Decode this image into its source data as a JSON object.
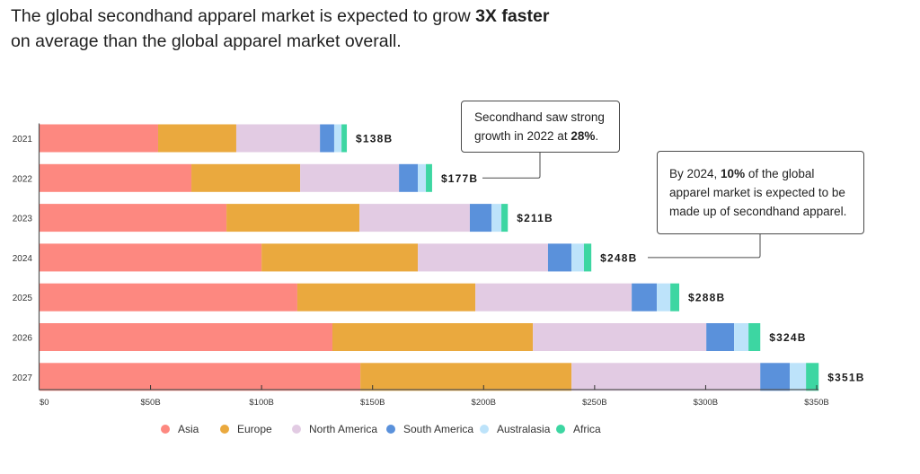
{
  "headline": {
    "line1_prefix": "The global secondhand apparel market is expected to grow ",
    "line1_bold": "3X faster",
    "line2": "on average than the global apparel market overall."
  },
  "annotations": [
    {
      "id": "annot1",
      "year": "2022",
      "text_prefix": "Secondhand saw strong growth in 2022 at ",
      "text_bold": "28%",
      "text_suffix": "."
    },
    {
      "id": "annot2",
      "year": "2024",
      "text_prefix": "By 2024, ",
      "text_bold": "10%",
      "text_suffix": " of the global apparel market is expected to be made up of secondhand apparel."
    }
  ],
  "chart_data": {
    "type": "bar",
    "orientation": "horizontal",
    "stacked": true,
    "title": "The global secondhand apparel market is expected to grow 3X faster on average than the global apparel market overall.",
    "xlabel": "",
    "ylabel": "",
    "xlim": [
      0,
      350
    ],
    "x_unit": "$B",
    "x_ticks": [
      0,
      50,
      100,
      150,
      200,
      250,
      300,
      350
    ],
    "x_tick_labels": [
      "$0",
      "$50B",
      "$100B",
      "$150B",
      "$200B",
      "$250B",
      "$300B",
      "$350B"
    ],
    "categories": [
      "2021",
      "2022",
      "2023",
      "2024",
      "2025",
      "2026",
      "2027"
    ],
    "series": [
      {
        "name": "Asia",
        "color": "#fd8880",
        "values": [
          53.4,
          68.4,
          84.2,
          100.0,
          116.1,
          131.9,
          144.5
        ]
      },
      {
        "name": "Europe",
        "color": "#eaa93e",
        "values": [
          35.2,
          49.0,
          59.9,
          70.4,
          80.2,
          90.3,
          95.1
        ]
      },
      {
        "name": "North America",
        "color": "#e2cbe3",
        "values": [
          37.7,
          44.5,
          49.7,
          58.6,
          70.4,
          78.1,
          85.0
        ]
      },
      {
        "name": "South America",
        "color": "#5a91db",
        "values": [
          6.4,
          8.5,
          9.8,
          10.6,
          11.3,
          12.5,
          13.3
        ]
      },
      {
        "name": "Australasia",
        "color": "#bde3fa",
        "values": [
          3.3,
          3.6,
          4.4,
          5.6,
          6.1,
          6.5,
          7.3
        ]
      },
      {
        "name": "Africa",
        "color": "#3dd6a2",
        "values": [
          2.4,
          2.8,
          2.9,
          3.3,
          4.0,
          5.3,
          5.7
        ]
      }
    ],
    "totals": [
      138,
      177,
      211,
      248,
      288,
      324,
      351
    ],
    "total_labels": [
      "$138B",
      "$177B",
      "$211B",
      "$248B",
      "$288B",
      "$324B",
      "$351B"
    ],
    "legend": {
      "position": "bottom",
      "entries": [
        "Asia",
        "Europe",
        "North America",
        "South America",
        "Australasia",
        "Africa"
      ]
    },
    "grid": false
  }
}
